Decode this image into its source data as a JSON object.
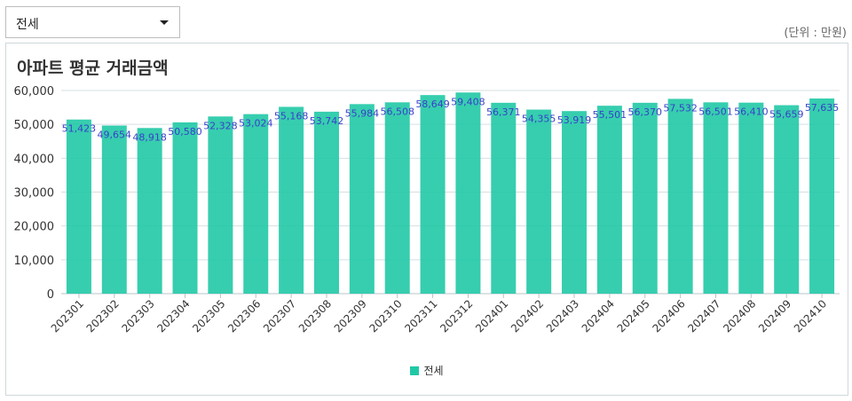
{
  "filter": {
    "selected": "전세"
  },
  "unit_note": "(단위 : 만원)",
  "panel": {
    "title": "아파트 평균 거래금액"
  },
  "colors": {
    "bar": "#20c9a6",
    "value_label": "#3a3fc9",
    "grid": "#d7dfe2"
  },
  "chart_data": {
    "type": "bar",
    "title": "아파트 평균 거래금액",
    "xlabel": "",
    "ylabel": "",
    "ylim": [
      0,
      60000
    ],
    "yticks": [
      "0",
      "10,000",
      "20,000",
      "30,000",
      "40,000",
      "50,000",
      "60,000"
    ],
    "ytick_values": [
      0,
      10000,
      20000,
      30000,
      40000,
      50000,
      60000
    ],
    "grid": true,
    "legend_position": "bottom",
    "categories": [
      "202301",
      "202302",
      "202303",
      "202304",
      "202305",
      "202306",
      "202307",
      "202308",
      "202309",
      "202310",
      "202311",
      "202312",
      "202401",
      "202402",
      "202403",
      "202404",
      "202405",
      "202406",
      "202407",
      "202408",
      "202409",
      "202410"
    ],
    "series": [
      {
        "name": "전세",
        "values": [
          51423,
          49654,
          48918,
          50580,
          52328,
          53024,
          55168,
          53742,
          55984,
          56508,
          58649,
          59408,
          56371,
          54355,
          53919,
          55501,
          56370,
          57532,
          56501,
          56410,
          55659,
          57635
        ],
        "labels": [
          "51,423",
          "49,654",
          "48,918",
          "50,580",
          "52,328",
          "53,024",
          "55,168",
          "53,742",
          "55,984",
          "56,508",
          "58,649",
          "59,408",
          "56,371",
          "54,355",
          "53,919",
          "55,501",
          "56,370",
          "57,532",
          "56,501",
          "56,410",
          "55,659",
          "57,635"
        ]
      }
    ]
  }
}
